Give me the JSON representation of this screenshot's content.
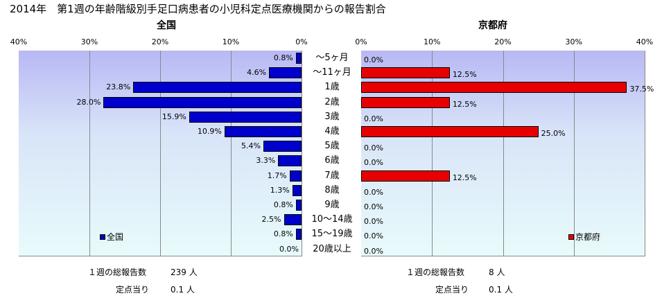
{
  "title": "2014年　第1週の年齢階級別手足口病患者の小児科定点医療機関からの報告割合",
  "chart_data": [
    {
      "type": "bar",
      "title": "全国",
      "orientation": "horizontal-reversed",
      "xlim": [
        0,
        40
      ],
      "ticks": [
        "40%",
        "30%",
        "20%",
        "10%",
        "0%"
      ],
      "categories": [
        "～5ヶ月",
        "～11ヶ月",
        "1歳",
        "2歳",
        "3歳",
        "4歳",
        "5歳",
        "6歳",
        "7歳",
        "8歳",
        "9歳",
        "10～14歳",
        "15～19歳",
        "20歳以上"
      ],
      "values": [
        0.8,
        4.6,
        23.8,
        28.0,
        15.9,
        10.9,
        5.4,
        3.3,
        1.7,
        1.3,
        0.8,
        2.5,
        0.8,
        0.0
      ],
      "labels": [
        "0.8%",
        "4.6%",
        "23.8%",
        "28.0%",
        "15.9%",
        "10.9%",
        "5.4%",
        "3.3%",
        "1.7%",
        "1.3%",
        "0.8%",
        "2.5%",
        "0.8%",
        "0.0%"
      ],
      "series_name": "全国",
      "color": "#0000cc",
      "legend": "bottom-left",
      "grid": true
    },
    {
      "type": "bar",
      "title": "京都府",
      "orientation": "horizontal",
      "xlim": [
        0,
        40
      ],
      "ticks": [
        "0%",
        "10%",
        "20%",
        "30%",
        "40%"
      ],
      "categories": [
        "～5ヶ月",
        "～11ヶ月",
        "1歳",
        "2歳",
        "3歳",
        "4歳",
        "5歳",
        "6歳",
        "7歳",
        "8歳",
        "9歳",
        "10～14歳",
        "15～19歳",
        "20歳以上"
      ],
      "values": [
        0.0,
        12.5,
        37.5,
        12.5,
        0.0,
        25.0,
        0.0,
        0.0,
        12.5,
        0.0,
        0.0,
        0.0,
        0.0,
        0.0
      ],
      "labels": [
        "0.0%",
        "12.5%",
        "37.5%",
        "12.5%",
        "0.0%",
        "25.0%",
        "0.0%",
        "0.0%",
        "12.5%",
        "0.0%",
        "0.0%",
        "0.0%",
        "0.0%",
        "0.0%"
      ],
      "series_name": "京都府",
      "color": "#e60000",
      "legend": "bottom-right",
      "grid": true
    }
  ],
  "footer": {
    "left_total_label": "１週の総報告数",
    "left_total_value": "239 人",
    "left_per_label": "定点当り",
    "left_per_value": "0.1 人",
    "right_total_label": "１週の総報告数",
    "right_total_value": "8 人",
    "right_per_label": "定点当り",
    "right_per_value": "0.1 人"
  }
}
